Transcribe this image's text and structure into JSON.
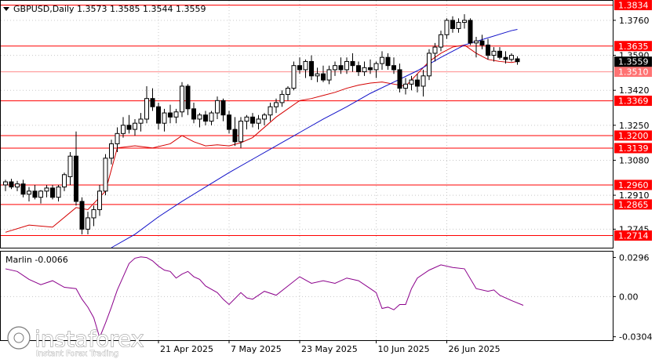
{
  "header": {
    "symbol_line": "GBPUSD,Daily  1.3573 1.3585 1.3544 1.3559"
  },
  "indicator": {
    "label": "Marlin -0.0066"
  },
  "watermark": {
    "brand": "instaforex",
    "tagline": "Instant Forex Trading"
  },
  "colors": {
    "level_line": "#ff0000",
    "level_label_bg": "#ff0000",
    "current_price_bg": "#000000",
    "ma_red": "#d40000",
    "ma_blue": "#1010c8",
    "marlin_line": "#8b008b",
    "candle_bull_fill": "#ffffff",
    "candle_bear_fill": "#000000"
  },
  "chart_data": [
    {
      "type": "candlestick",
      "title": "GBPUSD,Daily  1.3573 1.3585 1.3544 1.3559",
      "ylim": [
        1.2655,
        1.3855
      ],
      "y_ticks": [
        1.376,
        1.359,
        1.342,
        1.325,
        1.308,
        1.291,
        1.2745
      ],
      "x_tick_labels": [
        "21 Apr 2025",
        "7 May 2025",
        "23 May 2025",
        "10 Jun 2025",
        "26 Jun 2025"
      ],
      "x_tick_bar_index": [
        26,
        38,
        50,
        63,
        75
      ],
      "horizontal_levels": [
        1.3834,
        1.3635,
        1.351,
        1.3369,
        1.32,
        1.3139,
        1.296,
        1.2865,
        1.2714
      ],
      "current_price": 1.3559,
      "ohlc": [
        [
          1.296,
          1.2985,
          1.293,
          1.2975
        ],
        [
          1.2975,
          1.299,
          1.294,
          1.295
        ],
        [
          1.295,
          1.298,
          1.293,
          1.2965
        ],
        [
          1.2965,
          1.2985,
          1.29,
          1.2915
        ],
        [
          1.2915,
          1.295,
          1.288,
          1.293
        ],
        [
          1.293,
          1.296,
          1.289,
          1.29
        ],
        [
          1.29,
          1.2935,
          1.287,
          1.293
        ],
        [
          1.293,
          1.296,
          1.29,
          1.2945
        ],
        [
          1.2945,
          1.296,
          1.289,
          1.29
        ],
        [
          1.29,
          1.296,
          1.288,
          1.295
        ],
        [
          1.295,
          1.302,
          1.293,
          1.301
        ],
        [
          1.3,
          1.312,
          1.296,
          1.31
        ],
        [
          1.31,
          1.322,
          1.286,
          1.288
        ],
        [
          1.288,
          1.29,
          1.272,
          1.2745
        ],
        [
          1.2745,
          1.283,
          1.272,
          1.28
        ],
        [
          1.28,
          1.286,
          1.276,
          1.284
        ],
        [
          1.284,
          1.296,
          1.281,
          1.293
        ],
        [
          1.293,
          1.311,
          1.291,
          1.309
        ],
        [
          1.309,
          1.318,
          1.306,
          1.316
        ],
        [
          1.316,
          1.324,
          1.312,
          1.321
        ],
        [
          1.321,
          1.329,
          1.319,
          1.325
        ],
        [
          1.325,
          1.33,
          1.321,
          1.323
        ],
        [
          1.323,
          1.328,
          1.32,
          1.326
        ],
        [
          1.326,
          1.331,
          1.322,
          1.328
        ],
        [
          1.328,
          1.344,
          1.326,
          1.338
        ],
        [
          1.338,
          1.343,
          1.332,
          1.334
        ],
        [
          1.334,
          1.336,
          1.323,
          1.326
        ],
        [
          1.326,
          1.333,
          1.322,
          1.331
        ],
        [
          1.331,
          1.335,
          1.326,
          1.329
        ],
        [
          1.329,
          1.333,
          1.326,
          1.3315
        ],
        [
          1.3315,
          1.346,
          1.329,
          1.344
        ],
        [
          1.344,
          1.345,
          1.33,
          1.333
        ],
        [
          1.333,
          1.336,
          1.326,
          1.328
        ],
        [
          1.328,
          1.331,
          1.324,
          1.33
        ],
        [
          1.33,
          1.332,
          1.325,
          1.327
        ],
        [
          1.327,
          1.332,
          1.325,
          1.331
        ],
        [
          1.331,
          1.339,
          1.328,
          1.337
        ],
        [
          1.337,
          1.338,
          1.327,
          1.33
        ],
        [
          1.33,
          1.332,
          1.321,
          1.323
        ],
        [
          1.323,
          1.329,
          1.315,
          1.317
        ],
        [
          1.317,
          1.329,
          1.314,
          1.327
        ],
        [
          1.327,
          1.33,
          1.323,
          1.329
        ],
        [
          1.329,
          1.331,
          1.324,
          1.326
        ],
        [
          1.326,
          1.33,
          1.323,
          1.328
        ],
        [
          1.328,
          1.331,
          1.325,
          1.33
        ],
        [
          1.33,
          1.336,
          1.327,
          1.334
        ],
        [
          1.334,
          1.338,
          1.331,
          1.336
        ],
        [
          1.336,
          1.342,
          1.334,
          1.34
        ],
        [
          1.34,
          1.344,
          1.337,
          1.343
        ],
        [
          1.343,
          1.356,
          1.342,
          1.354
        ],
        [
          1.354,
          1.358,
          1.35,
          1.352
        ],
        [
          1.352,
          1.357,
          1.348,
          1.356
        ],
        [
          1.356,
          1.359,
          1.347,
          1.349
        ],
        [
          1.349,
          1.353,
          1.346,
          1.35
        ],
        [
          1.35,
          1.354,
          1.346,
          1.347
        ],
        [
          1.347,
          1.354,
          1.345,
          1.352
        ],
        [
          1.352,
          1.356,
          1.349,
          1.354
        ],
        [
          1.354,
          1.358,
          1.35,
          1.352
        ],
        [
          1.352,
          1.358,
          1.35,
          1.356
        ],
        [
          1.356,
          1.36,
          1.351,
          1.354
        ],
        [
          1.354,
          1.356,
          1.349,
          1.351
        ],
        [
          1.351,
          1.356,
          1.349,
          1.353
        ],
        [
          1.353,
          1.357,
          1.35,
          1.352
        ],
        [
          1.352,
          1.356,
          1.348,
          1.355
        ],
        [
          1.355,
          1.361,
          1.352,
          1.358
        ],
        [
          1.358,
          1.36,
          1.352,
          1.354
        ],
        [
          1.354,
          1.358,
          1.35,
          1.352
        ],
        [
          1.352,
          1.355,
          1.341,
          1.343
        ],
        [
          1.343,
          1.348,
          1.34,
          1.345
        ],
        [
          1.345,
          1.349,
          1.342,
          1.347
        ],
        [
          1.347,
          1.35,
          1.341,
          1.344
        ],
        [
          1.344,
          1.352,
          1.339,
          1.349
        ],
        [
          1.349,
          1.362,
          1.347,
          1.36
        ],
        [
          1.36,
          1.365,
          1.356,
          1.363
        ],
        [
          1.363,
          1.371,
          1.361,
          1.369
        ],
        [
          1.369,
          1.377,
          1.367,
          1.376
        ],
        [
          1.376,
          1.378,
          1.37,
          1.372
        ],
        [
          1.372,
          1.377,
          1.37,
          1.375
        ],
        [
          1.375,
          1.379,
          1.372,
          1.376
        ],
        [
          1.376,
          1.377,
          1.364,
          1.365
        ],
        [
          1.365,
          1.368,
          1.358,
          1.366
        ],
        [
          1.366,
          1.369,
          1.362,
          1.364
        ],
        [
          1.364,
          1.367,
          1.357,
          1.359
        ],
        [
          1.359,
          1.363,
          1.356,
          1.361
        ],
        [
          1.361,
          1.363,
          1.357,
          1.358
        ],
        [
          1.358,
          1.361,
          1.355,
          1.357
        ],
        [
          1.357,
          1.36,
          1.356,
          1.359
        ],
        [
          1.3573,
          1.3585,
          1.3544,
          1.3559
        ]
      ],
      "series": [
        {
          "type": "line",
          "color": "#d40000",
          "points": [
            [
              0,
              1.273
            ],
            [
              4,
              1.2765
            ],
            [
              8,
              1.2755
            ],
            [
              12,
              1.285
            ],
            [
              14,
              1.284
            ],
            [
              17,
              1.293
            ],
            [
              19,
              1.314
            ],
            [
              22,
              1.315
            ],
            [
              25,
              1.314
            ],
            [
              28,
              1.316
            ],
            [
              30,
              1.32
            ],
            [
              32,
              1.317
            ],
            [
              34,
              1.315
            ],
            [
              36,
              1.3155
            ],
            [
              38,
              1.315
            ],
            [
              40,
              1.3165
            ],
            [
              42,
              1.319
            ],
            [
              44,
              1.324
            ],
            [
              46,
              1.329
            ],
            [
              48,
              1.333
            ],
            [
              50,
              1.337
            ],
            [
              52,
              1.338
            ],
            [
              54,
              1.3395
            ],
            [
              56,
              1.341
            ],
            [
              58,
              1.343
            ],
            [
              60,
              1.3445
            ],
            [
              62,
              1.3455
            ],
            [
              64,
              1.346
            ],
            [
              66,
              1.345
            ],
            [
              68,
              1.344
            ],
            [
              70,
              1.35
            ],
            [
              72,
              1.356
            ],
            [
              74,
              1.36
            ],
            [
              76,
              1.363
            ],
            [
              78,
              1.364
            ],
            [
              80,
              1.36
            ],
            [
              82,
              1.357
            ],
            [
              84,
              1.356
            ],
            [
              86,
              1.3555
            ],
            [
              87,
              1.356
            ]
          ]
        },
        {
          "type": "line",
          "color": "#1010c8",
          "points": [
            [
              18,
              1.2655
            ],
            [
              22,
              1.272
            ],
            [
              26,
              1.2805
            ],
            [
              30,
              1.288
            ],
            [
              34,
              1.295
            ],
            [
              38,
              1.302
            ],
            [
              42,
              1.3085
            ],
            [
              46,
              1.315
            ],
            [
              50,
              1.3215
            ],
            [
              54,
              1.328
            ],
            [
              58,
              1.334
            ],
            [
              62,
              1.3405
            ],
            [
              66,
              1.346
            ],
            [
              70,
              1.3515
            ],
            [
              74,
              1.358
            ],
            [
              78,
              1.364
            ],
            [
              82,
              1.3675
            ],
            [
              86,
              1.371
            ],
            [
              87,
              1.3716
            ]
          ]
        }
      ]
    },
    {
      "type": "line",
      "title": "Marlin -0.0066",
      "ylim": [
        -0.033,
        0.034
      ],
      "y_ticks": [
        0.0296,
        0.0,
        -0.0304
      ],
      "series": [
        {
          "name": "Marlin",
          "color": "#8b008b",
          "points": [
            [
              0,
              0.021
            ],
            [
              2,
              0.019
            ],
            [
              4,
              0.013
            ],
            [
              6,
              0.009
            ],
            [
              8,
              0.012
            ],
            [
              10,
              0.007
            ],
            [
              12,
              0.006
            ],
            [
              13,
              -0.002
            ],
            [
              14,
              -0.008
            ],
            [
              15,
              -0.016
            ],
            [
              16,
              -0.031
            ],
            [
              17,
              -0.02
            ],
            [
              18,
              -0.008
            ],
            [
              19,
              0.005
            ],
            [
              20,
              0.015
            ],
            [
              21,
              0.025
            ],
            [
              22,
              0.029
            ],
            [
              23,
              0.03
            ],
            [
              24,
              0.0295
            ],
            [
              25,
              0.027
            ],
            [
              26,
              0.023
            ],
            [
              27,
              0.02
            ],
            [
              28,
              0.019
            ],
            [
              29,
              0.014
            ],
            [
              30,
              0.017
            ],
            [
              31,
              0.019
            ],
            [
              32,
              0.015
            ],
            [
              33,
              0.013
            ],
            [
              34,
              0.008
            ],
            [
              36,
              0.003
            ],
            [
              37,
              -0.002
            ],
            [
              38,
              -0.006
            ],
            [
              40,
              0.003
            ],
            [
              41,
              -0.001
            ],
            [
              42,
              -0.002
            ],
            [
              44,
              0.004
            ],
            [
              46,
              0.001
            ],
            [
              48,
              0.008
            ],
            [
              50,
              0.015
            ],
            [
              52,
              0.01
            ],
            [
              54,
              0.012
            ],
            [
              56,
              0.01
            ],
            [
              58,
              0.014
            ],
            [
              60,
              0.012
            ],
            [
              62,
              0.006
            ],
            [
              63,
              0.003
            ],
            [
              64,
              -0.009
            ],
            [
              65,
              -0.008
            ],
            [
              66,
              -0.01
            ],
            [
              67,
              -0.006
            ],
            [
              68,
              -0.006
            ],
            [
              69,
              0.006
            ],
            [
              70,
              0.014
            ],
            [
              72,
              0.02
            ],
            [
              74,
              0.024
            ],
            [
              76,
              0.022
            ],
            [
              78,
              0.021
            ],
            [
              80,
              0.006
            ],
            [
              82,
              0.004
            ],
            [
              83,
              0.005
            ],
            [
              84,
              0.001
            ],
            [
              86,
              -0.003
            ],
            [
              88,
              -0.0066
            ]
          ]
        }
      ]
    }
  ]
}
